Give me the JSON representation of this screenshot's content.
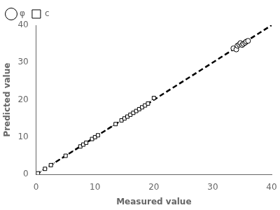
{
  "chart_data": {
    "type": "line",
    "xlabel": "Measured value",
    "ylabel": "Predicted value",
    "xlim": [
      0,
      40
    ],
    "ylim": [
      0,
      40
    ],
    "xticks": [
      0,
      10,
      20,
      30,
      40
    ],
    "yticks": [
      0,
      10,
      20,
      30,
      40
    ],
    "grid": false,
    "legend": "upper left",
    "series": [
      {
        "x": [
          0,
          40
        ],
        "values": [
          0,
          40
        ],
        "color": "black",
        "line_style": "dashed"
      },
      {
        "name": "φ",
        "x": [
          33.5,
          34.0,
          34.2,
          34.5,
          34.7,
          35.0,
          35.2,
          35.5,
          35.7,
          36.0
        ],
        "values": [
          33.8,
          33.5,
          34.5,
          34.8,
          35.2,
          34.7,
          35.0,
          35.3,
          35.6,
          35.8
        ],
        "color": "black",
        "line_style": "solid",
        "marker": "circle"
      },
      {
        "name": "c",
        "x": [
          0.3,
          1.5,
          2.5,
          5.0,
          7.5,
          8.0,
          8.5,
          9.5,
          10.0,
          10.5,
          13.5,
          14.5,
          15.0,
          15.5,
          16.0,
          16.5,
          17.0,
          17.5,
          18.0,
          18.5,
          19.0,
          20.0
        ],
        "values": [
          0.3,
          1.5,
          2.5,
          5.0,
          7.5,
          8.0,
          8.5,
          9.5,
          10.0,
          10.5,
          13.5,
          14.5,
          15.0,
          15.5,
          16.0,
          16.5,
          17.0,
          17.5,
          18.0,
          18.5,
          19.0,
          20.5
        ],
        "color": "black",
        "line_style": "dotted",
        "marker": "square"
      }
    ]
  }
}
